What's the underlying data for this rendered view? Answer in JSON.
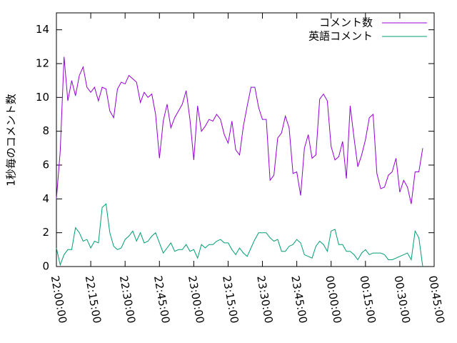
{
  "chart_data": {
    "type": "line",
    "y_label": "1秒毎のコメント数",
    "x": [
      "22:00:00",
      "22:01:40",
      "22:03:20",
      "22:05:00",
      "22:06:40",
      "22:08:20",
      "22:10:00",
      "22:11:40",
      "22:13:20",
      "22:15:00",
      "22:16:40",
      "22:18:20",
      "22:20:00",
      "22:21:40",
      "22:23:20",
      "22:25:00",
      "22:26:40",
      "22:28:20",
      "22:30:00",
      "22:31:40",
      "22:33:20",
      "22:35:00",
      "22:36:40",
      "22:38:20",
      "22:40:00",
      "22:41:40",
      "22:43:20",
      "22:45:00",
      "22:46:40",
      "22:48:20",
      "22:50:00",
      "22:51:40",
      "22:53:20",
      "22:55:00",
      "22:56:40",
      "22:58:20",
      "23:00:00",
      "23:01:40",
      "23:03:20",
      "23:05:00",
      "23:06:40",
      "23:08:20",
      "23:10:00",
      "23:11:40",
      "23:13:20",
      "23:15:00",
      "23:16:40",
      "23:18:20",
      "23:20:00",
      "23:21:40",
      "23:23:20",
      "23:25:00",
      "23:26:40",
      "23:28:20",
      "23:30:00",
      "23:31:40",
      "23:33:20",
      "23:35:00",
      "23:36:40",
      "23:38:20",
      "23:40:00",
      "23:41:40",
      "23:43:20",
      "23:45:00",
      "23:46:40",
      "23:48:20",
      "23:50:00",
      "23:51:40",
      "23:53:20",
      "23:55:00",
      "23:56:40",
      "23:58:20",
      "00:00:00",
      "00:01:40",
      "00:03:20",
      "00:05:00",
      "00:06:40",
      "00:08:20",
      "00:10:00",
      "00:11:40",
      "00:13:20",
      "00:15:00",
      "00:16:40",
      "00:18:20",
      "00:20:00",
      "00:21:40",
      "00:23:20",
      "00:25:00",
      "00:26:40",
      "00:28:20",
      "00:30:00",
      "00:31:40",
      "00:33:20",
      "00:35:00",
      "00:36:40",
      "00:38:20",
      "00:40:00"
    ],
    "series": [
      {
        "name": "コメント数",
        "color": "#9400d3",
        "values": [
          4.0,
          6.8,
          12.4,
          9.8,
          11.0,
          10.1,
          11.3,
          11.8,
          10.6,
          10.3,
          10.6,
          9.8,
          10.6,
          10.5,
          9.2,
          8.8,
          10.5,
          10.9,
          10.8,
          11.3,
          11.1,
          10.9,
          9.7,
          10.3,
          10.0,
          10.2,
          9.0,
          6.4,
          8.6,
          9.6,
          8.2,
          8.8,
          9.2,
          9.6,
          10.4,
          8.7,
          6.3,
          9.5,
          8.0,
          8.3,
          8.7,
          8.6,
          9.0,
          8.7,
          7.8,
          7.3,
          8.6,
          6.9,
          6.6,
          8.3,
          9.5,
          10.6,
          10.6,
          9.4,
          8.7,
          8.7,
          5.1,
          5.4,
          7.6,
          7.9,
          8.9,
          8.2,
          5.5,
          5.6,
          4.2,
          7.0,
          7.8,
          6.4,
          6.6,
          9.9,
          10.2,
          9.8,
          7.1,
          6.3,
          6.5,
          7.4,
          5.2,
          9.5,
          7.6,
          5.9,
          6.6,
          7.5,
          8.8,
          9.0,
          5.5,
          4.6,
          4.7,
          5.4,
          5.6,
          6.4,
          4.4,
          5.1,
          4.7,
          3.7,
          5.6,
          5.6,
          7.0
        ]
      },
      {
        "name": "英語コメント",
        "color": "#009e73",
        "values": [
          1.1,
          0.1,
          0.7,
          1.0,
          1.0,
          2.3,
          2.0,
          1.5,
          1.6,
          1.1,
          1.5,
          1.4,
          3.5,
          3.7,
          2.0,
          1.2,
          1.0,
          1.1,
          1.6,
          1.8,
          2.1,
          1.5,
          2.0,
          1.4,
          1.5,
          1.8,
          2.0,
          1.4,
          0.8,
          1.1,
          1.4,
          0.9,
          1.0,
          1.0,
          1.3,
          0.9,
          1.0,
          0.5,
          1.3,
          1.1,
          1.3,
          1.3,
          1.5,
          1.6,
          1.4,
          1.4,
          1.0,
          0.7,
          1.1,
          0.8,
          0.6,
          1.1,
          1.6,
          2.0,
          2.0,
          2.0,
          1.7,
          1.5,
          1.6,
          0.9,
          0.9,
          1.2,
          1.3,
          1.6,
          1.4,
          0.7,
          0.6,
          0.5,
          1.2,
          1.5,
          1.3,
          0.9,
          2.1,
          2.2,
          1.3,
          1.3,
          0.9,
          0.9,
          0.7,
          0.4,
          0.8,
          1.0,
          0.7,
          0.8,
          0.8,
          0.8,
          0.7,
          0.4,
          0.4,
          0.5,
          0.6,
          0.7,
          0.8,
          0.4,
          2.1,
          1.7,
          0.0
        ]
      }
    ],
    "xlim": [
      "22:00:00",
      "00:45:00"
    ],
    "xticks": [
      "22:00:00",
      "22:15:00",
      "22:30:00",
      "22:45:00",
      "23:00:00",
      "23:15:00",
      "23:30:00",
      "23:45:00",
      "00:00:00",
      "00:15:00",
      "00:30:00",
      "00:45:00"
    ],
    "ylim": [
      0,
      15
    ],
    "yticks": [
      0,
      2,
      4,
      6,
      8,
      10,
      12,
      14
    ],
    "grid": false,
    "legend": "top-right"
  }
}
